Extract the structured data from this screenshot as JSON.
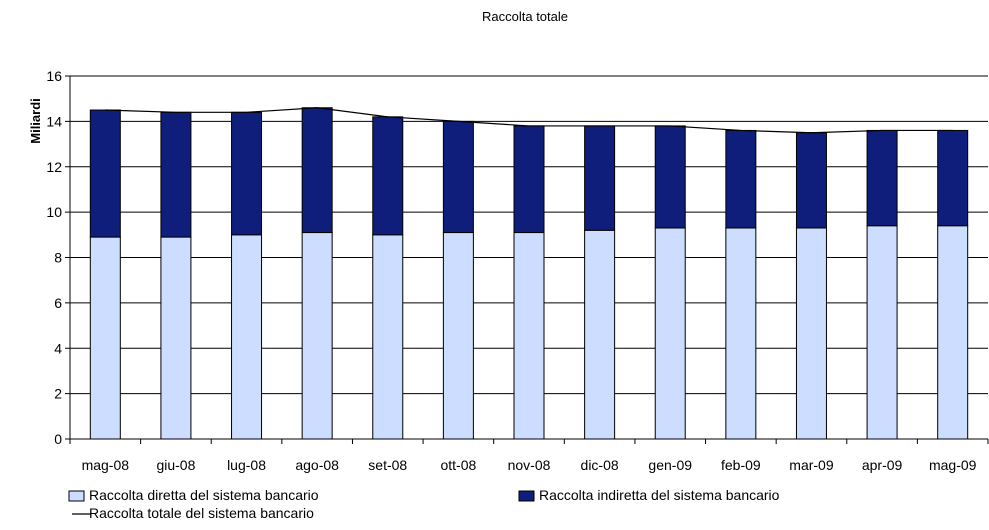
{
  "chart_data": {
    "type": "bar",
    "title": "Raccolta totale",
    "xlabel": "",
    "ylabel": "Miliardi",
    "ylim": [
      0,
      16
    ],
    "yticks": [
      0,
      2,
      4,
      6,
      8,
      10,
      12,
      14,
      16
    ],
    "grid": true,
    "legend_position": "bottom",
    "categories": [
      "mag-08",
      "giu-08",
      "lug-08",
      "ago-08",
      "set-08",
      "ott-08",
      "nov-08",
      "dic-08",
      "gen-09",
      "feb-09",
      "mar-09",
      "apr-09",
      "mag-09"
    ],
    "series": [
      {
        "name": "Raccolta diretta del sistema bancario",
        "kind": "stacked-bar",
        "color": "#CCDDFF",
        "values": [
          8.9,
          8.9,
          9.0,
          9.1,
          9.0,
          9.1,
          9.1,
          9.2,
          9.3,
          9.3,
          9.3,
          9.4,
          9.4
        ]
      },
      {
        "name": "Raccolta indiretta del sistema bancario",
        "kind": "stacked-bar",
        "color": "#0E1E7A",
        "values": [
          5.6,
          5.5,
          5.4,
          5.5,
          5.2,
          4.9,
          4.7,
          4.6,
          4.5,
          4.3,
          4.2,
          4.2,
          4.2
        ]
      },
      {
        "name": "Raccolta totale del sistema bancario",
        "kind": "line",
        "color": "#000000",
        "values": [
          14.5,
          14.4,
          14.4,
          14.6,
          14.2,
          14.0,
          13.8,
          13.8,
          13.8,
          13.6,
          13.5,
          13.6,
          13.6
        ]
      }
    ]
  }
}
